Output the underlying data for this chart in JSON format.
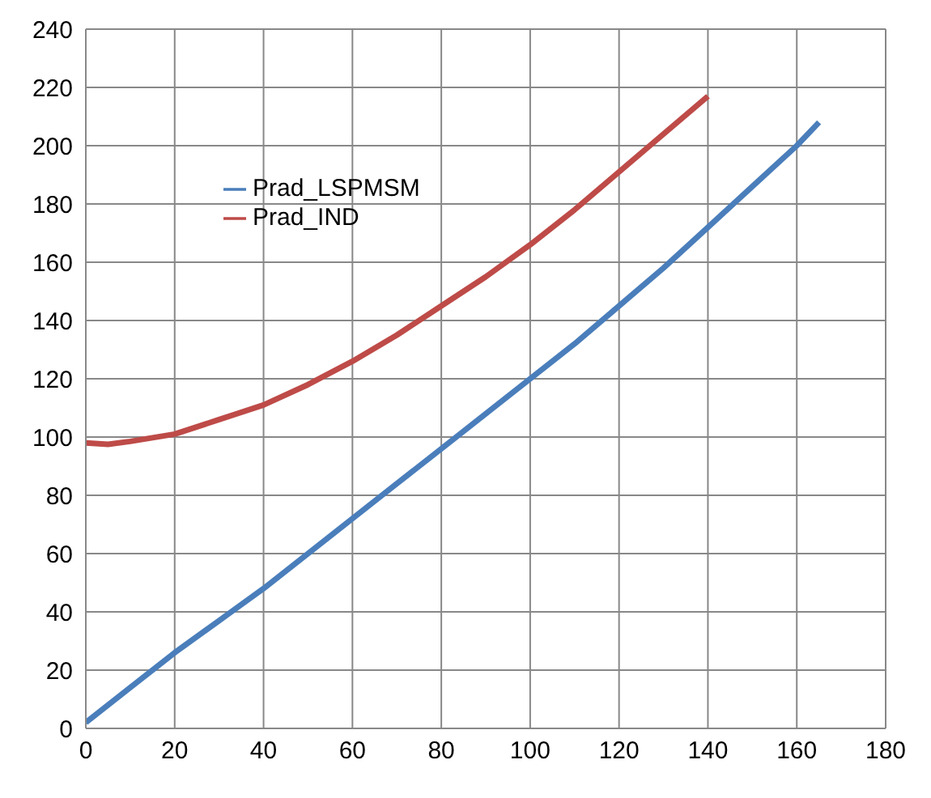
{
  "chart_data": {
    "type": "line",
    "xlim": [
      0,
      180
    ],
    "xticks": [
      0,
      20,
      40,
      60,
      80,
      100,
      120,
      140,
      160,
      180
    ],
    "ylim": [
      0,
      240
    ],
    "yticks": [
      0,
      20,
      40,
      60,
      80,
      100,
      120,
      140,
      160,
      180,
      200,
      220,
      240
    ],
    "grid": true,
    "legend": "top left",
    "marker": "none",
    "line_style": "solid",
    "series": [
      {
        "name": "Prad_LSPMSM",
        "color": "#4a7ebb",
        "x": [
          0,
          10,
          20,
          30,
          40,
          50,
          60,
          70,
          80,
          90,
          100,
          110,
          120,
          130,
          140,
          150,
          160,
          165
        ],
        "values": [
          2,
          14,
          26,
          37,
          48,
          60,
          72,
          84,
          96,
          108,
          120,
          132,
          145,
          158,
          172,
          186,
          200,
          208
        ]
      },
      {
        "name": "Prad_IND",
        "color": "#be4b48",
        "x": [
          0,
          5,
          10,
          20,
          30,
          40,
          50,
          60,
          70,
          80,
          90,
          100,
          110,
          120,
          130,
          140
        ],
        "values": [
          98,
          97.5,
          98.5,
          101,
          106,
          111,
          118,
          126,
          135,
          145,
          155,
          166,
          178,
          191,
          204,
          217
        ]
      }
    ]
  }
}
